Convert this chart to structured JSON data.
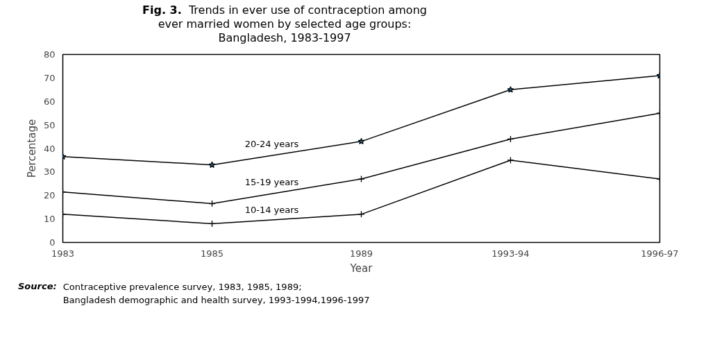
{
  "chart_data": {
    "type": "line",
    "title": "Fig. 3.  Trends in ever use of contraception among ever married women by selected age groups: Bangladesh, 1983-1997",
    "xlabel": "Year",
    "ylabel": "Percentage",
    "categories": [
      "1983",
      "1985",
      "1989",
      "1993-94",
      "1996-97"
    ],
    "series": [
      {
        "name": "20-24 years",
        "color": "#000000",
        "marker": "star",
        "values": [
          36.5,
          33,
          43,
          65,
          71
        ]
      },
      {
        "name": "15-19 years",
        "color": "#000000",
        "marker": "cross",
        "values": [
          21.5,
          16.5,
          27,
          44,
          55
        ]
      },
      {
        "name": "10-14 years",
        "color": "#000000",
        "marker": "cross",
        "values": [
          12,
          8,
          12,
          35,
          27
        ]
      }
    ],
    "ylim": [
      0,
      80
    ],
    "yticks": [
      0,
      10,
      20,
      30,
      40,
      50,
      60,
      70,
      80
    ],
    "grid": false,
    "legend": false,
    "line_style": "solid",
    "annotations": [
      "Source:  Contraceptive prevalence survey, 1983, 1985, 1989;\nBangladesh demographic and health survey, 1993-1994,1996-1997"
    ]
  }
}
